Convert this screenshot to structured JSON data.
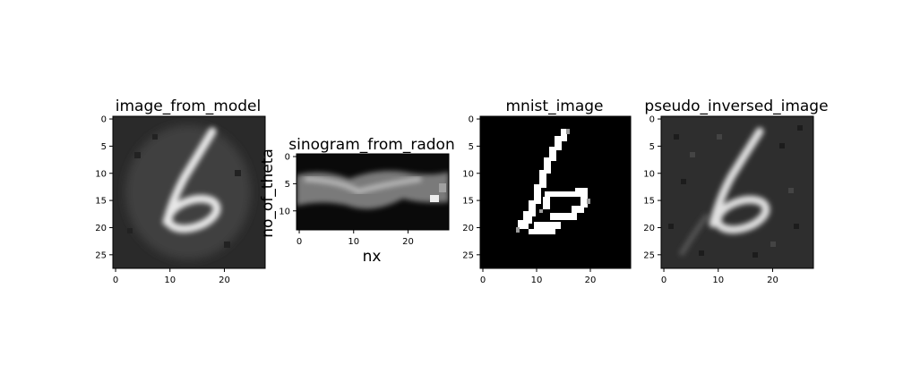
{
  "figure": {
    "panels": [
      {
        "id": "p1",
        "title": "image_from_model",
        "xlabel": "",
        "ylabel": "",
        "x_ticks": [
          "0",
          "10",
          "20"
        ],
        "y_ticks": [
          "0",
          "5",
          "10",
          "15",
          "20",
          "25"
        ]
      },
      {
        "id": "p2",
        "title": "sinogram_from_radon",
        "xlabel": "nx",
        "ylabel": "no_of_theta",
        "x_ticks": [
          "0",
          "10",
          "20"
        ],
        "y_ticks": [
          "0",
          "5",
          "10"
        ]
      },
      {
        "id": "p3",
        "title": "mnist_image",
        "xlabel": "",
        "ylabel": "",
        "x_ticks": [
          "0",
          "10",
          "20"
        ],
        "y_ticks": [
          "0",
          "5",
          "10",
          "15",
          "20",
          "25"
        ]
      },
      {
        "id": "p4",
        "title": "pseudo_inversed_image",
        "xlabel": "",
        "ylabel": "",
        "x_ticks": [
          "0",
          "10",
          "20"
        ],
        "y_ticks": [
          "0",
          "5",
          "10",
          "15",
          "20",
          "25"
        ]
      }
    ]
  },
  "chart_data": [
    {
      "type": "heatmap",
      "title": "image_from_model",
      "xlabel": "",
      "ylabel": "",
      "xlim": [
        -0.5,
        27.5
      ],
      "ylim": [
        27.5,
        -0.5
      ],
      "x_ticks": [
        0,
        10,
        20
      ],
      "y_ticks": [
        0,
        5,
        10,
        15,
        20,
        25
      ],
      "colormap": "gray",
      "shape": [
        28,
        28
      ]
    },
    {
      "type": "heatmap",
      "title": "sinogram_from_radon",
      "xlabel": "nx",
      "ylabel": "no_of_theta",
      "xlim": [
        -0.5,
        27.5
      ],
      "ylim": [
        13.5,
        -0.5
      ],
      "x_ticks": [
        0,
        10,
        20
      ],
      "y_ticks": [
        0,
        5,
        10
      ],
      "colormap": "gray",
      "shape": [
        14,
        28
      ]
    },
    {
      "type": "heatmap",
      "title": "mnist_image",
      "xlabel": "",
      "ylabel": "",
      "xlim": [
        -0.5,
        27.5
      ],
      "ylim": [
        27.5,
        -0.5
      ],
      "x_ticks": [
        0,
        10,
        20
      ],
      "y_ticks": [
        0,
        5,
        10,
        15,
        20,
        25
      ],
      "colormap": "gray",
      "shape": [
        28,
        28
      ]
    },
    {
      "type": "heatmap",
      "title": "pseudo_inversed_image",
      "xlabel": "",
      "ylabel": "",
      "xlim": [
        -0.5,
        27.5
      ],
      "ylim": [
        27.5,
        -0.5
      ],
      "x_ticks": [
        0,
        10,
        20
      ],
      "y_ticks": [
        0,
        5,
        10,
        15,
        20,
        25
      ],
      "colormap": "gray",
      "shape": [
        28,
        28
      ]
    }
  ]
}
